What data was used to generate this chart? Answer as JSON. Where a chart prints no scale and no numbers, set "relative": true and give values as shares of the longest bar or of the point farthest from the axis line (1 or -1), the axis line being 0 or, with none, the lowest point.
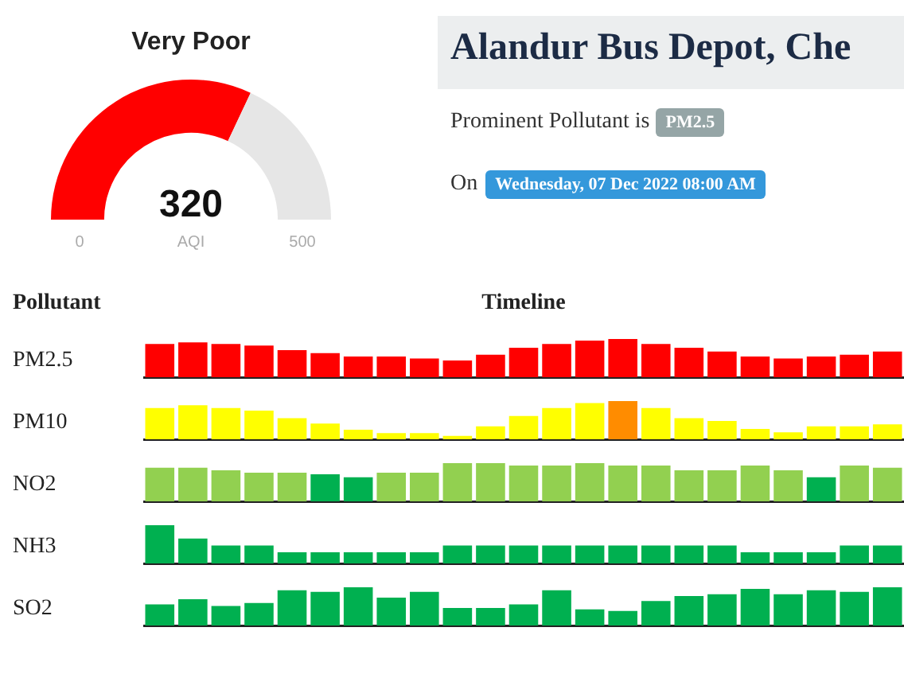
{
  "chart_data": [
    {
      "type": "donut",
      "title": "Very Poor",
      "categories": [
        null,
        null
      ],
      "values": [
        320,
        180
      ],
      "colors": [
        "#ff0000",
        "#e6e6e6"
      ],
      "value_labels": [
        "320",
        null
      ],
      "annotations": [
        "0",
        "AQI",
        "500"
      ]
    },
    {
      "type": "other",
      "title": "Alandur Bus Depot, Che",
      "annotations": [
        "Prominent Pollutant is",
        "PM2.5",
        "On",
        "Wednesday, 07 Dec 2022 08:00 AM"
      ]
    },
    {
      "type": "bar",
      "relative": true,
      "title": "Timeline",
      "annotations": [
        "Pollutant"
      ],
      "ylabel": "PM2.5",
      "categories": [
        null,
        null,
        null,
        null,
        null,
        null,
        null,
        null,
        null,
        null,
        null,
        null,
        null,
        null,
        null,
        null,
        null,
        null,
        null,
        null,
        null,
        null,
        null
      ],
      "values": [
        0.87,
        0.91,
        0.87,
        0.83,
        0.71,
        0.63,
        0.54,
        0.54,
        0.49,
        0.44,
        0.59,
        0.77,
        0.87,
        0.96,
        1,
        0.87,
        0.77,
        0.67,
        0.54,
        0.49,
        0.54,
        0.59,
        0.67
      ],
      "color": "#ff0000"
    },
    {
      "type": "bar",
      "relative": true,
      "ylabel": "PM10",
      "categories": [
        null,
        null,
        null,
        null,
        null,
        null,
        null,
        null,
        null,
        null,
        null,
        null,
        null,
        null,
        null,
        null,
        null,
        null,
        null,
        null,
        null,
        null,
        null
      ],
      "values": [
        0.82,
        0.89,
        0.82,
        0.75,
        0.55,
        0.41,
        0.25,
        0.16,
        0.16,
        0.09,
        0.34,
        0.61,
        0.82,
        0.95,
        1,
        0.82,
        0.55,
        0.48,
        0.27,
        0.18,
        0.34,
        0.34,
        0.39
      ],
      "colors": [
        "#ffff00",
        "#ffff00",
        "#ffff00",
        "#ffff00",
        "#ffff00",
        "#ffff00",
        "#ffff00",
        "#ffff00",
        "#ffff00",
        "#ffff00",
        "#ffff00",
        "#ffff00",
        "#ffff00",
        "#ffff00",
        "#ff8c00",
        "#ffff00",
        "#ffff00",
        "#ffff00",
        "#ffff00",
        "#ffff00",
        "#ffff00",
        "#ffff00",
        "#ffff00"
      ]
    },
    {
      "type": "bar",
      "relative": true,
      "ylabel": "NO2",
      "categories": [
        null,
        null,
        null,
        null,
        null,
        null,
        null,
        null,
        null,
        null,
        null,
        null,
        null,
        null,
        null,
        null,
        null,
        null,
        null,
        null,
        null,
        null,
        null
      ],
      "values": [
        0.88,
        0.88,
        0.81,
        0.75,
        0.75,
        0.71,
        0.63,
        0.75,
        0.75,
        1,
        1,
        0.94,
        0.94,
        1,
        0.94,
        0.94,
        0.81,
        0.81,
        0.94,
        0.81,
        0.63,
        0.94,
        0.88
      ],
      "colors": [
        "#92d050",
        "#92d050",
        "#92d050",
        "#92d050",
        "#92d050",
        "#00b050",
        "#00b050",
        "#92d050",
        "#92d050",
        "#92d050",
        "#92d050",
        "#92d050",
        "#92d050",
        "#92d050",
        "#92d050",
        "#92d050",
        "#92d050",
        "#92d050",
        "#92d050",
        "#92d050",
        "#00b050",
        "#92d050",
        "#92d050"
      ]
    },
    {
      "type": "bar",
      "relative": true,
      "ylabel": "NH3",
      "categories": [
        null,
        null,
        null,
        null,
        null,
        null,
        null,
        null,
        null,
        null,
        null,
        null,
        null,
        null,
        null,
        null,
        null,
        null,
        null,
        null,
        null,
        null,
        null
      ],
      "values": [
        1,
        0.65,
        0.47,
        0.47,
        0.29,
        0.29,
        0.29,
        0.29,
        0.29,
        0.47,
        0.47,
        0.47,
        0.47,
        0.47,
        0.47,
        0.47,
        0.47,
        0.47,
        0.29,
        0.29,
        0.29,
        0.47,
        0.47
      ],
      "color": "#00b050"
    },
    {
      "type": "bar",
      "relative": true,
      "ylabel": "SO2",
      "categories": [
        null,
        null,
        null,
        null,
        null,
        null,
        null,
        null,
        null,
        null,
        null,
        null,
        null,
        null,
        null,
        null,
        null,
        null,
        null,
        null,
        null,
        null,
        null
      ],
      "values": [
        0.55,
        0.69,
        0.51,
        0.59,
        0.92,
        0.88,
        1,
        0.73,
        0.88,
        0.46,
        0.46,
        0.55,
        0.92,
        0.42,
        0.38,
        0.64,
        0.77,
        0.82,
        0.96,
        0.82,
        0.92,
        0.88,
        1
      ],
      "color": "#00b050"
    }
  ]
}
